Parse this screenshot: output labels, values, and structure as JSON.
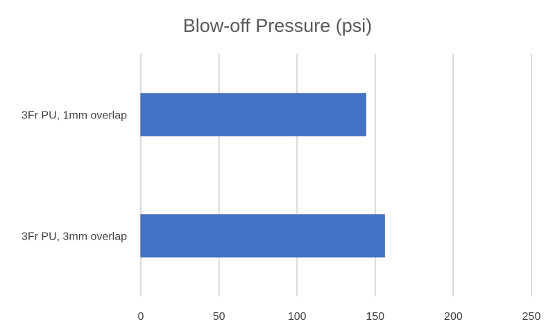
{
  "chart_data": {
    "type": "bar",
    "orientation": "horizontal",
    "title": "Blow-off Pressure (psi)",
    "xlabel": "",
    "ylabel": "",
    "categories": [
      "3Fr PU, 1mm overlap",
      "3Fr PU, 3mm overlap"
    ],
    "values": [
      144,
      156
    ],
    "xlim": [
      0,
      250
    ],
    "xticks": [
      0,
      50,
      100,
      150,
      200,
      250
    ],
    "grid": true,
    "legend": "none",
    "bar_color": "#4472c4"
  }
}
